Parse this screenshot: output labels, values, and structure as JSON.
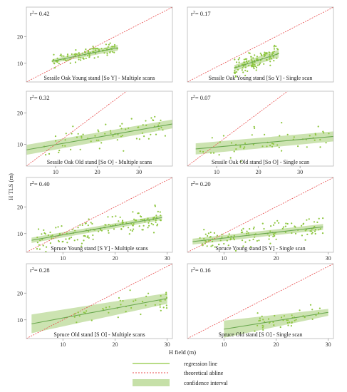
{
  "figure": {
    "xlabel": "H field (m)",
    "ylabel": "H TLS (m)",
    "legend": {
      "regression": "regression line",
      "abline": "theoretical abline",
      "ci": "confidence interval"
    },
    "colors": {
      "points": "#8dc63f",
      "regression": "#6aa84f",
      "ci": "#c6e0a8",
      "abline": "#e84a4a",
      "frame": "#b8b8b8"
    }
  },
  "chart_data": [
    {
      "type": "scatter",
      "caption": "Sessile Oak Young stand [So Y] - Multiple scans",
      "r2_text": "0.42",
      "xticks": [],
      "yticks": [
        10,
        20
      ],
      "xlim": [
        3,
        31
      ],
      "ylim": [
        3,
        31
      ],
      "regression": {
        "x0": 8,
        "y0": 10.8,
        "x1": 20.5,
        "y1": 15.8
      },
      "ci": [
        0.7,
        1.1
      ],
      "abline": true,
      "n_points": 110,
      "cloud": {
        "xmin": 8,
        "xmax": 20.5,
        "sd": 1.5
      }
    },
    {
      "type": "scatter",
      "caption": "Sessile Oak Young stand [So Y] - Single scan",
      "r2_text": "0.17",
      "xticks": [],
      "yticks": [],
      "xlim": [
        3,
        31
      ],
      "ylim": [
        3,
        31
      ],
      "regression": {
        "x0": 12,
        "y0": 8.2,
        "x1": 20.5,
        "y1": 13.6
      },
      "ci": [
        1.1,
        1.5
      ],
      "abline": true,
      "n_points": 120,
      "cloud": {
        "xmin": 12,
        "xmax": 20.5,
        "sd": 2.6
      }
    },
    {
      "type": "scatter",
      "caption": "Sessile Oak Old stand [So O] - Multiple scans",
      "r2_text": "0.32",
      "xticks": [
        10,
        20,
        30
      ],
      "yticks": [
        10,
        20
      ],
      "xlim": [
        3,
        38
      ],
      "ylim": [
        3,
        27
      ],
      "regression": {
        "x0": 3,
        "y0": 8.2,
        "x1": 38,
        "y1": 16.5
      },
      "ci": [
        1.6,
        1.4
      ],
      "abline": true,
      "n_points": 70,
      "cloud": {
        "xmin": 6,
        "xmax": 37,
        "sd": 3.2
      }
    },
    {
      "type": "scatter",
      "caption": "Sessile Oak Old stand [So O] - Single scan",
      "r2_text": "0.07",
      "xticks": [
        10,
        20,
        30
      ],
      "yticks": [],
      "xlim": [
        3,
        38
      ],
      "ylim": [
        3,
        27
      ],
      "regression": {
        "x0": 5,
        "y0": 8.5,
        "x1": 38,
        "y1": 12.5
      },
      "ci": [
        1.8,
        1.6
      ],
      "abline": true,
      "n_points": 55,
      "cloud": {
        "xmin": 6,
        "xmax": 37,
        "sd": 3.5
      }
    },
    {
      "type": "scatter",
      "caption": "Spruce Young stand [S Y] - Multiple scans",
      "r2_text": "0.40",
      "xticks": [
        10,
        20,
        30
      ],
      "yticks": [
        10,
        20
      ],
      "xlim": [
        3,
        31
      ],
      "ylim": [
        3,
        31
      ],
      "regression": {
        "x0": 4,
        "y0": 7.5,
        "x1": 29,
        "y1": 16
      },
      "ci": [
        1.0,
        0.9
      ],
      "abline": true,
      "n_points": 150,
      "cloud": {
        "xmin": 5,
        "xmax": 29,
        "sd": 3.3
      }
    },
    {
      "type": "scatter",
      "caption": "Spruce Young stand [S Y] - Single scan",
      "r2_text": "0.20",
      "xticks": [
        10,
        20,
        30
      ],
      "yticks": [],
      "xlim": [
        3,
        31
      ],
      "ylim": [
        3,
        31
      ],
      "regression": {
        "x0": 4,
        "y0": 7,
        "x1": 29,
        "y1": 12.5
      },
      "ci": [
        1.1,
        1.1
      ],
      "abline": true,
      "n_points": 120,
      "cloud": {
        "xmin": 5,
        "xmax": 29,
        "sd": 3.5
      }
    },
    {
      "type": "scatter",
      "caption": "Spruce Old stand [S O] - Multiple scans",
      "r2_text": "0.28",
      "xticks": [
        10,
        20,
        30
      ],
      "yticks": [
        10,
        20
      ],
      "xlim": [
        3,
        31
      ],
      "ylim": [
        3,
        31
      ],
      "regression": {
        "x0": 4,
        "y0": 8.5,
        "x1": 30,
        "y1": 18
      },
      "ci": [
        3.5,
        2.0
      ],
      "abline": true,
      "n_points": 45,
      "cloud": {
        "xmin": 12,
        "xmax": 30,
        "sd": 3.2
      }
    },
    {
      "type": "scatter",
      "caption": "Spruce Old stand [S O] - Single scan",
      "r2_text": "0.16",
      "xticks": [
        10,
        20,
        30
      ],
      "yticks": [],
      "xlim": [
        3,
        31
      ],
      "ylim": [
        3,
        31
      ],
      "regression": {
        "x0": 10,
        "y0": 6.5,
        "x1": 30,
        "y1": 12.8
      },
      "ci": [
        3.2,
        1.3
      ],
      "abline": true,
      "n_points": 45,
      "cloud": {
        "xmin": 15,
        "xmax": 30,
        "sd": 2.8
      }
    }
  ]
}
